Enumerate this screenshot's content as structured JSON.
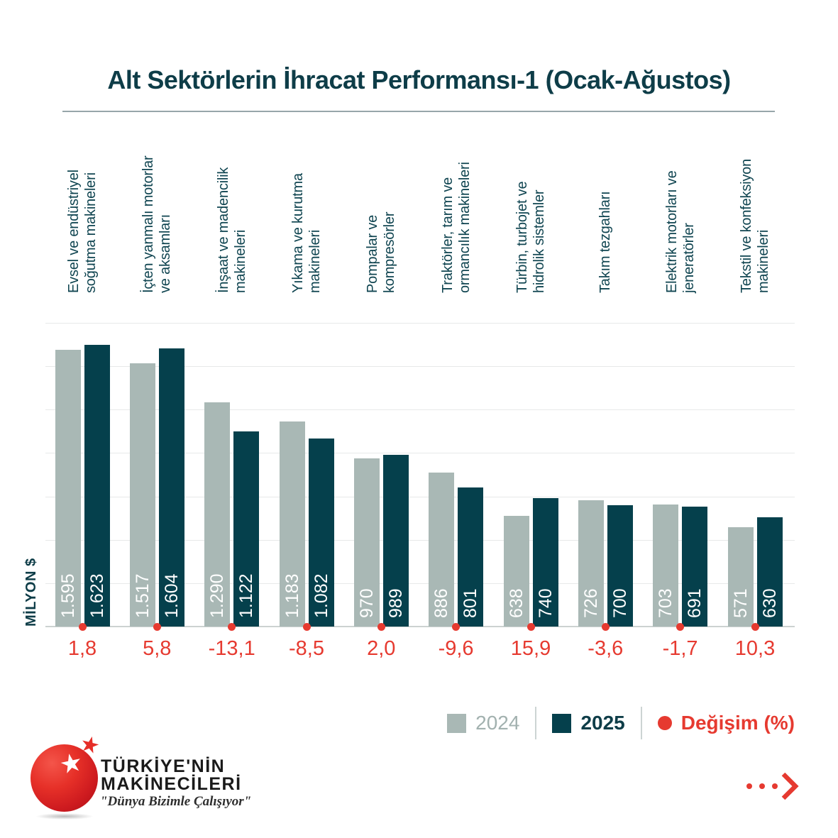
{
  "title": "Alt Sektörlerin İhracat Performansı-1 (Ocak-Ağustos)",
  "y_axis_label": "MİLYON $",
  "chart_data": {
    "type": "bar",
    "title": "Alt Sektörlerin İhracat Performansı-1 (Ocak-Ağustos)",
    "ylabel": "MİLYON $",
    "ylim": [
      0,
      1750
    ],
    "gridline_step": 250,
    "grid": true,
    "legend_position": "bottom-right",
    "categories": [
      "Evsel ve endüstriyel soğutma makineleri",
      "İçten yanmalı motorlar ve aksamları",
      "İnşaat ve madencilik makineleri",
      "Yıkama ve kurutma makineleri",
      "Pompalar ve kompresörler",
      "Traktörler, tarım ve ormancılık makineleri",
      "Türbin, turbojet ve hidrolik sistemler",
      "Takım tezgahları",
      "Elektrik motorları ve jeneratörler",
      "Tekstil ve konfeksiyon makineleri"
    ],
    "category_lines": [
      [
        "Evsel ve endüstriyel",
        "soğutma makineleri"
      ],
      [
        "İçten yanmalı motorlar",
        "ve aksamları"
      ],
      [
        "İnşaat ve madencilik",
        "makineleri"
      ],
      [
        "Yıkama ve kurutma",
        "makineleri"
      ],
      [
        "Pompalar ve",
        "kompresörler"
      ],
      [
        "Traktörler, tarım ve",
        "ormancılık makineleri"
      ],
      [
        "Türbin, turbojet ve",
        "hidrolik sistemler"
      ],
      [
        "Takım tezgahları"
      ],
      [
        "Elektrik motorları ve",
        "jeneratörler"
      ],
      [
        "Tekstil ve konfeksiyon",
        "makineleri"
      ]
    ],
    "series": [
      {
        "name": "2024",
        "color": "#a9b8b5",
        "values": [
          1595,
          1517,
          1290,
          1183,
          970,
          886,
          638,
          726,
          703,
          571
        ],
        "labels": [
          "1.595",
          "1.517",
          "1.290",
          "1.183",
          "970",
          "886",
          "638",
          "726",
          "703",
          "571"
        ]
      },
      {
        "name": "2025",
        "color": "#05404c",
        "values": [
          1623,
          1604,
          1122,
          1082,
          989,
          801,
          740,
          700,
          691,
          630
        ],
        "labels": [
          "1.623",
          "1.604",
          "1.122",
          "1.082",
          "989",
          "801",
          "740",
          "700",
          "691",
          "630"
        ]
      }
    ],
    "change_series": {
      "name": "Değişim (%)",
      "color": "#e63a30",
      "values": [
        1.8,
        5.8,
        -13.1,
        -8.5,
        2.0,
        -9.6,
        15.9,
        -3.6,
        -1.7,
        10.3
      ],
      "labels": [
        "1,8",
        "5,8",
        "-13,1",
        "-8,5",
        "2,0",
        "-9,6",
        "15,9",
        "-3,6",
        "-1,7",
        "10,3"
      ]
    }
  },
  "legend": {
    "items": [
      {
        "label": "2024",
        "marker": "square",
        "color": "#a9b8b5"
      },
      {
        "label": "2025",
        "marker": "square",
        "color": "#05404c"
      },
      {
        "label": "Değişim (%)",
        "marker": "circle",
        "color": "#e63a30"
      }
    ]
  },
  "logo": {
    "name_line1": "TÜRKİYE'NİN",
    "name_line2": "MAKİNECİLERİ",
    "tagline": "\"Dünya Bizimle Çalışıyor\"",
    "star_glyph": "★"
  },
  "colors": {
    "background": "#ffffff",
    "title_text": "#0e3d48",
    "bar_2024": "#a9b8b5",
    "bar_2025": "#05404c",
    "accent_red": "#e63a30",
    "gridline": "#e7e9e9",
    "baseline": "#ccd2d1"
  }
}
